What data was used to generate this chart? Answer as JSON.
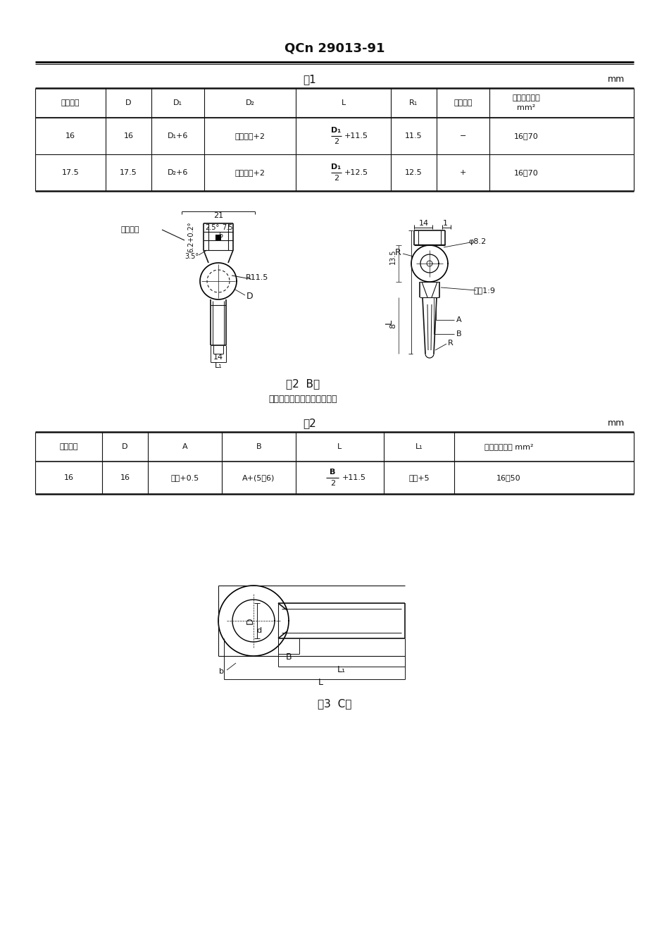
{
  "page_title": "QCn 29013-91",
  "table1_title": "表1",
  "table1_unit": "mm",
  "table1_headers": [
    "桩头直径",
    "D",
    "D₁",
    "D₂",
    "L",
    "R₁",
    "极性符号",
    "适用导线截面\nmm²"
  ],
  "t1_row1": [
    "16",
    "16",
    "D₁+6",
    "线芯外径+2",
    "D₁",
    "11.5",
    "−",
    "16～70"
  ],
  "t1_row2": [
    "17.5",
    "17.5",
    "D₂+6",
    "线芯外径+2",
    "D₁",
    "12.5",
    "+",
    "16～70"
  ],
  "t1_L_suffix1": "+11.5",
  "t1_L_suffix2": "+12.5",
  "fig2_caption": "图2  B型",
  "fig2_note": "标注＊尺寸的突起也可以右置",
  "table2_title": "表2",
  "table2_unit": "mm",
  "table2_headers": [
    "桩头直径",
    "D",
    "A",
    "B",
    "L",
    "L₁",
    "适用导线截面 mm²"
  ],
  "t2_row1": [
    "16",
    "16",
    "线厚+0.5",
    "A+(5～6)",
    "B",
    "线宽+5",
    "16～50"
  ],
  "t2_L_suffix": "+11.5",
  "fig3_caption": "图3  C型",
  "dim_21": "21",
  "dim_polarity": "极性符号",
  "dim_2p5": "2.5°",
  "dim_7p5": "7.5",
  "dim_6": "6",
  "dim_6p2": "6.2+0.2°",
  "dim_3p5": "3.5°",
  "dim_R11p5": "R11.5",
  "dim_D": "D",
  "dim_14": "14",
  "dim_L1": "L₁",
  "dim_14r": "14",
  "dim_1": "1",
  "dim_phi8p2": "φ8.2",
  "dim_R": "R",
  "dim_13p5": "13.5",
  "dim_taper": "锥度1:9",
  "dim_8": "8",
  "dim_A": "A",
  "dim_B": "B",
  "dim_L": "L",
  "dim_d": "d",
  "bg_color": "#ffffff"
}
